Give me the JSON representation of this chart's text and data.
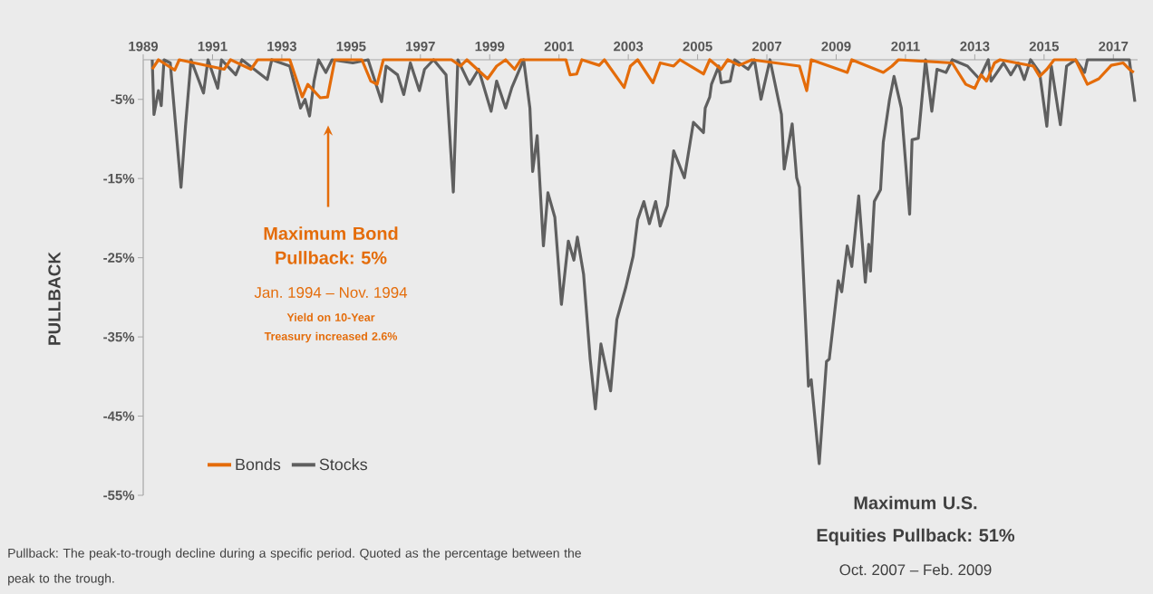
{
  "chart_data": {
    "type": "line",
    "ylabel": "PULLBACK",
    "xlim": [
      1989,
      2017.7
    ],
    "ylim": [
      -55,
      0
    ],
    "xticks": [
      1989,
      1991,
      1993,
      1995,
      1997,
      1999,
      2001,
      2003,
      2005,
      2007,
      2009,
      2011,
      2013,
      2015,
      2017
    ],
    "yticks": [
      {
        "value": -5,
        "label": "-5%"
      },
      {
        "value": -15,
        "label": "-15%"
      },
      {
        "value": -25,
        "label": "-25%"
      },
      {
        "value": -35,
        "label": "-35%"
      },
      {
        "value": -45,
        "label": "-45%"
      },
      {
        "value": -55,
        "label": "-55%"
      }
    ],
    "legend": "bottom left",
    "series": [
      {
        "name": "Bonds",
        "color": "#e46c0a",
        "x": [
          1989.26,
          1989.44,
          1989.91,
          1990.04,
          1991.34,
          1991.52,
          1992.11,
          1992.3,
          1993.23,
          1993.59,
          1993.75,
          1994.11,
          1994.32,
          1994.53,
          1995.31,
          1995.57,
          1995.75,
          1995.93,
          1997.9,
          1998.16,
          1998.34,
          1998.94,
          1999.2,
          1999.46,
          1999.72,
          1999.9,
          2001.2,
          2001.32,
          2001.51,
          2001.66,
          2002.16,
          2002.31,
          2002.88,
          2003.06,
          2003.27,
          2003.71,
          2003.92,
          2004.31,
          2004.49,
          2005.17,
          2005.35,
          2005.68,
          2005.87,
          2006.2,
          2006.57,
          2007.94,
          2008.15,
          2008.28,
          2009.32,
          2009.45,
          2010.36,
          2010.61,
          2010.8,
          2012.35,
          2012.74,
          2013.0,
          2013.18,
          2013.34,
          2013.57,
          2013.73,
          2014.69,
          2014.87,
          2015.08,
          2015.29,
          2015.91,
          2016.25,
          2016.58,
          2016.94,
          2017.28,
          2017.46,
          2017.59
        ],
        "values": [
          -1.2,
          0,
          -1.3,
          0,
          -1.2,
          0,
          -1.2,
          0,
          0,
          -4.7,
          -3.1,
          -4.8,
          -4.7,
          0,
          0,
          -2.7,
          -3.1,
          0,
          0,
          -0.8,
          0,
          -2.4,
          -0.8,
          0,
          -1.2,
          0,
          0,
          -1.9,
          -1.8,
          0,
          -0.7,
          0,
          -3.5,
          -0.8,
          0,
          -2.9,
          -0.4,
          -0.8,
          0,
          -1.8,
          0,
          -1.2,
          0,
          -0.7,
          0,
          -0.8,
          -3.9,
          0,
          -1.6,
          0,
          -1.6,
          -0.8,
          0,
          -0.4,
          -3.1,
          -3.6,
          -1.9,
          -2.7,
          -0.4,
          0,
          -0.8,
          -2.1,
          -1.2,
          0,
          0,
          -3.1,
          -2.4,
          -0.7,
          -0.4,
          -1.2,
          -1.6
        ]
      },
      {
        "name": "Stocks",
        "color": "#5f5f5f",
        "x": [
          1989.26,
          1989.31,
          1989.44,
          1989.52,
          1989.6,
          1989.78,
          1990.09,
          1990.22,
          1990.38,
          1990.74,
          1990.87,
          1991.15,
          1991.26,
          1991.67,
          1991.85,
          1992.58,
          1992.71,
          1993.23,
          1993.54,
          1993.67,
          1993.8,
          1993.93,
          1994.06,
          1994.27,
          1994.45,
          1995.05,
          1995.49,
          1995.88,
          1996.01,
          1996.34,
          1996.52,
          1996.71,
          1996.97,
          1997.12,
          1997.38,
          1997.74,
          1997.95,
          1998.08,
          1998.42,
          1998.68,
          1999.04,
          1999.2,
          1999.46,
          1999.64,
          1999.98,
          2000.16,
          2000.24,
          2000.37,
          2000.55,
          2000.68,
          2000.88,
          2001.07,
          2001.27,
          2001.43,
          2001.53,
          2001.71,
          2001.9,
          2002.05,
          2002.21,
          2002.49,
          2002.67,
          2002.93,
          2003.14,
          2003.27,
          2003.45,
          2003.61,
          2003.79,
          2003.92,
          2004.13,
          2004.31,
          2004.62,
          2004.88,
          2005.17,
          2005.22,
          2005.35,
          2005.4,
          2005.61,
          2005.68,
          2005.94,
          2006.07,
          2006.46,
          2006.64,
          2006.83,
          2007.09,
          2007.42,
          2007.5,
          2007.73,
          2007.86,
          2007.94,
          2008.2,
          2008.28,
          2008.51,
          2008.72,
          2008.8,
          2009.06,
          2009.16,
          2009.32,
          2009.45,
          2009.65,
          2009.84,
          2009.94,
          2009.99,
          2010.1,
          2010.28,
          2010.36,
          2010.54,
          2010.67,
          2010.88,
          2011.12,
          2011.19,
          2011.37,
          2011.58,
          2011.76,
          2011.91,
          2012.17,
          2012.35,
          2012.79,
          2013.13,
          2013.39,
          2013.47,
          2013.83,
          2014.04,
          2014.25,
          2014.43,
          2014.61,
          2014.87,
          2015.08,
          2015.21,
          2015.47,
          2015.65,
          2015.91,
          2016.17,
          2016.25,
          2017.28,
          2017.46,
          2017.62
        ],
        "values": [
          0,
          -6.9,
          -3.9,
          -5.8,
          0,
          -0.4,
          -16.1,
          -8.4,
          0,
          -4.2,
          0,
          -3.6,
          0,
          -1.9,
          0,
          -2.5,
          0,
          -0.8,
          -6.1,
          -5.0,
          -7.1,
          -2.7,
          0,
          -1.6,
          0,
          -0.4,
          0,
          -5.3,
          -0.8,
          -1.9,
          -4.4,
          -0.4,
          -3.9,
          -1.2,
          0,
          -1.9,
          -16.7,
          0,
          -3.1,
          -1.2,
          -6.5,
          -2.7,
          -6.1,
          -3.5,
          0,
          -6.1,
          -14.1,
          -9.6,
          -23.5,
          -16.8,
          -19.9,
          -30.9,
          -22.9,
          -25.3,
          -22.4,
          -27.1,
          -37.8,
          -44.1,
          -35.9,
          -41.8,
          -32.8,
          -28.7,
          -24.8,
          -20.2,
          -17.9,
          -20.7,
          -17.9,
          -21.0,
          -18.4,
          -11.5,
          -14.9,
          -7.9,
          -9.2,
          -6.1,
          -4.7,
          -3.1,
          -0.8,
          -2.9,
          -2.7,
          0,
          -1.2,
          0,
          -5.0,
          0,
          -6.9,
          -13.8,
          -8.1,
          -14.9,
          -16.1,
          -41.2,
          -40.4,
          -51,
          -38.1,
          -37.8,
          -27.9,
          -29.3,
          -23.5,
          -26.1,
          -17.2,
          -28.1,
          -23.3,
          -26.7,
          -17.9,
          -16.4,
          -10.4,
          -5.0,
          -2.1,
          -6.1,
          -19.5,
          -10.1,
          -9.9,
          0,
          -6.5,
          -1.2,
          -1.6,
          0,
          -0.8,
          -2.4,
          0,
          -2.7,
          -0.4,
          -1.9,
          -0.4,
          -2.5,
          0,
          -1.6,
          -8.4,
          -0.8,
          -8.2,
          -0.8,
          0,
          -1.6,
          0,
          0,
          0,
          -5.3
        ]
      }
    ],
    "annotations": [
      "Maximum Bond Pullback: 5%",
      "Jan. 1994 – Nov. 1994",
      "Yield on 10-Year Treasury increased 2.6%",
      "Maximum U.S. Equities Pullback: 51%",
      "Oct. 2007 – Feb. 2009",
      "Pullback: The peak-to-trough decline during a specific period. Quoted as the percentage between the peak to the trough."
    ]
  }
}
